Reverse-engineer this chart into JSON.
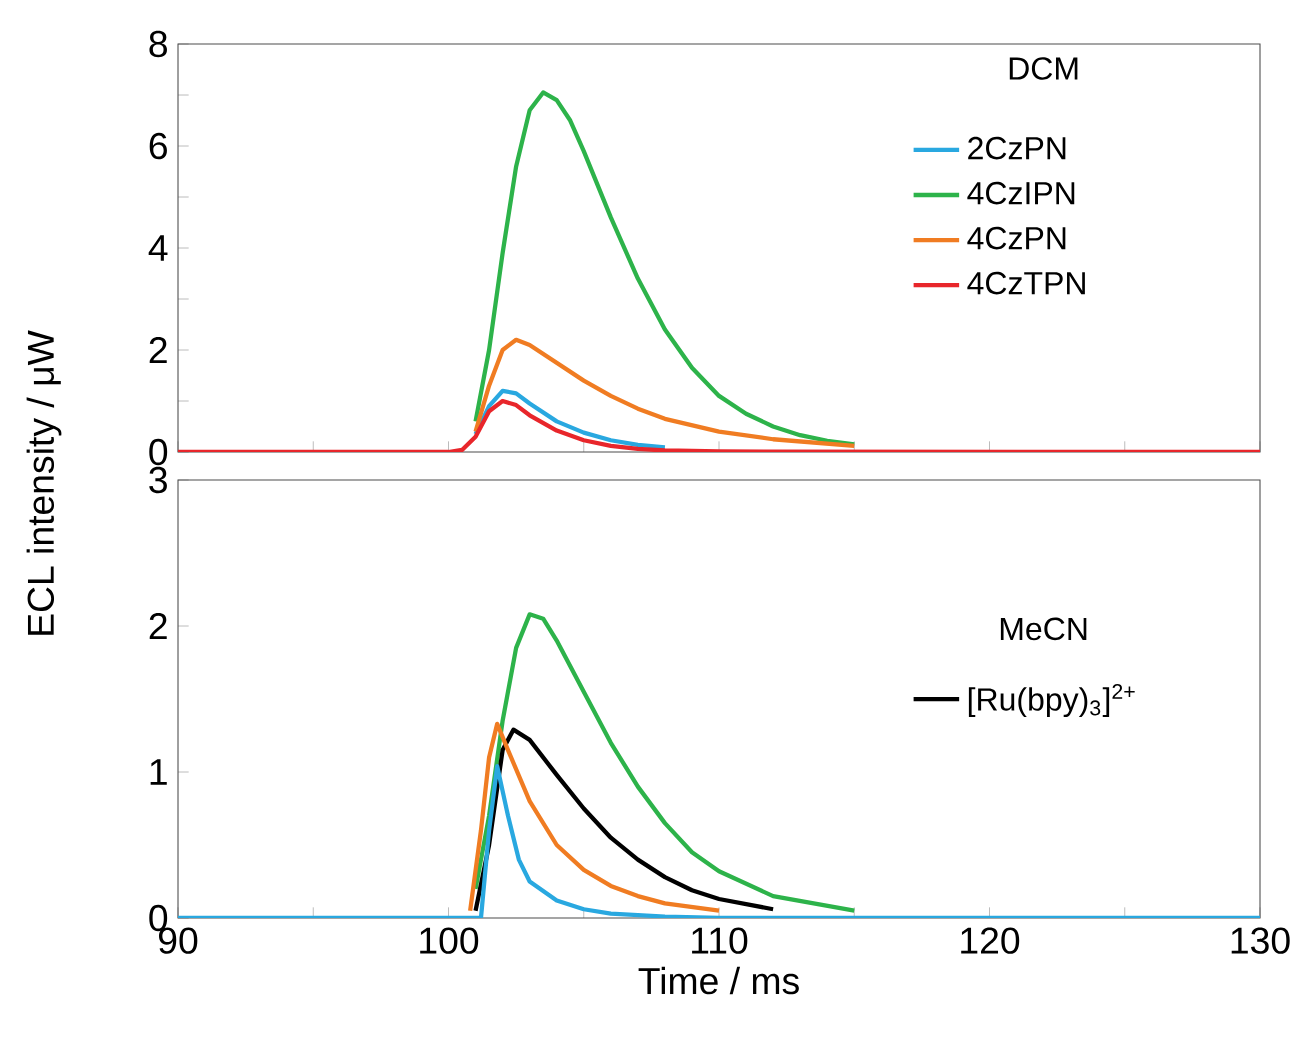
{
  "chart_data": [
    {
      "type": "line",
      "annotations": [
        "DCM"
      ],
      "ylabel": "ECL intensity / μW",
      "xlim": [
        90,
        130
      ],
      "ylim": [
        0,
        8
      ],
      "tick_labels": "y",
      "legend": "top right",
      "marker": "none",
      "line_style": "solid",
      "xticks": [
        90,
        {
          "value": 95,
          "label": null
        },
        100,
        {
          "value": 105,
          "label": null
        },
        110,
        {
          "value": 115,
          "label": null
        },
        120,
        {
          "value": 125,
          "label": null
        },
        130
      ],
      "yticks": [
        0,
        {
          "value": 1,
          "label": null
        },
        2,
        {
          "value": 3,
          "label": null
        },
        4,
        {
          "value": 5,
          "label": null
        },
        6,
        {
          "value": 7,
          "label": null
        },
        8
      ],
      "series": [
        {
          "name": "2CzPN",
          "color": "#29a8e0",
          "x": [
            101,
            101.5,
            102,
            102.5,
            103,
            104,
            105,
            106,
            107,
            108
          ],
          "values": [
            0.35,
            0.9,
            1.2,
            1.15,
            0.95,
            0.6,
            0.38,
            0.23,
            0.14,
            0.09
          ]
        },
        {
          "name": "4CzIPN",
          "color": "#2db34a",
          "x": [
            101,
            101.5,
            102,
            102.5,
            103,
            103.5,
            104,
            104.5,
            105,
            106,
            107,
            108,
            109,
            110,
            111,
            112,
            113,
            114,
            115
          ],
          "values": [
            0.6,
            2.0,
            3.9,
            5.6,
            6.7,
            7.05,
            6.9,
            6.5,
            5.9,
            4.6,
            3.4,
            2.4,
            1.65,
            1.1,
            0.75,
            0.5,
            0.33,
            0.22,
            0.15
          ]
        },
        {
          "name": "4CzPN",
          "color": "#f07c22",
          "x": [
            101,
            101.5,
            102,
            102.5,
            103,
            104,
            105,
            106,
            107,
            108,
            110,
            112,
            115
          ],
          "values": [
            0.4,
            1.3,
            2.0,
            2.2,
            2.1,
            1.75,
            1.4,
            1.1,
            0.85,
            0.65,
            0.4,
            0.25,
            0.12
          ]
        },
        {
          "name": "4CzTPN",
          "color": "#e8262b",
          "x": [
            90,
            100,
            100.5,
            101,
            101.5,
            102,
            102.5,
            103,
            104,
            105,
            106,
            107,
            108,
            110,
            130
          ],
          "values": [
            0,
            0,
            0.04,
            0.3,
            0.8,
            1.0,
            0.92,
            0.72,
            0.42,
            0.23,
            0.12,
            0.06,
            0.03,
            0.01,
            0
          ]
        }
      ]
    },
    {
      "type": "line",
      "annotations": [
        "MeCN"
      ],
      "xlabel": "Time / ms",
      "xlim": [
        90,
        130
      ],
      "ylim": [
        0,
        3
      ],
      "legend": "right",
      "marker": "none",
      "line_style": "solid",
      "xticks": [
        90,
        {
          "value": 95,
          "label": null
        },
        100,
        {
          "value": 105,
          "label": null
        },
        110,
        {
          "value": 115,
          "label": null
        },
        120,
        {
          "value": 125,
          "label": null
        },
        130
      ],
      "yticks": [
        0,
        1,
        2,
        3
      ],
      "series": [
        {
          "color": "#2db34a",
          "x": [
            101,
            101.5,
            102,
            102.5,
            103,
            103.5,
            104,
            105,
            106,
            107,
            108,
            109,
            110,
            112,
            115
          ],
          "values": [
            0.2,
            0.7,
            1.35,
            1.85,
            2.08,
            2.05,
            1.9,
            1.55,
            1.2,
            0.9,
            0.65,
            0.45,
            0.32,
            0.15,
            0.05
          ]
        },
        {
          "name": "[Ru(bpy)$_{3}$]$^{2+}$",
          "color": "#000000",
          "x": [
            101,
            101.5,
            102,
            102.4,
            103,
            104,
            105,
            106,
            107,
            108,
            109,
            110,
            112
          ],
          "values": [
            0.05,
            0.5,
            1.15,
            1.29,
            1.22,
            0.98,
            0.75,
            0.55,
            0.4,
            0.28,
            0.19,
            0.13,
            0.06
          ]
        },
        {
          "color": "#f07c22",
          "x": [
            100.8,
            101.2,
            101.5,
            101.8,
            102.2,
            103,
            104,
            105,
            106,
            107,
            108,
            110
          ],
          "values": [
            0.05,
            0.6,
            1.1,
            1.33,
            1.15,
            0.8,
            0.5,
            0.33,
            0.22,
            0.15,
            0.1,
            0.05
          ]
        },
        {
          "color": "#29a8e0",
          "x": [
            90,
            101.2,
            101.5,
            101.8,
            102.2,
            102.6,
            103,
            104,
            105,
            106,
            108,
            110,
            130
          ],
          "values": [
            0,
            0,
            0.6,
            1.04,
            0.7,
            0.4,
            0.25,
            0.12,
            0.06,
            0.03,
            0.01,
            0,
            0
          ]
        }
      ]
    }
  ]
}
